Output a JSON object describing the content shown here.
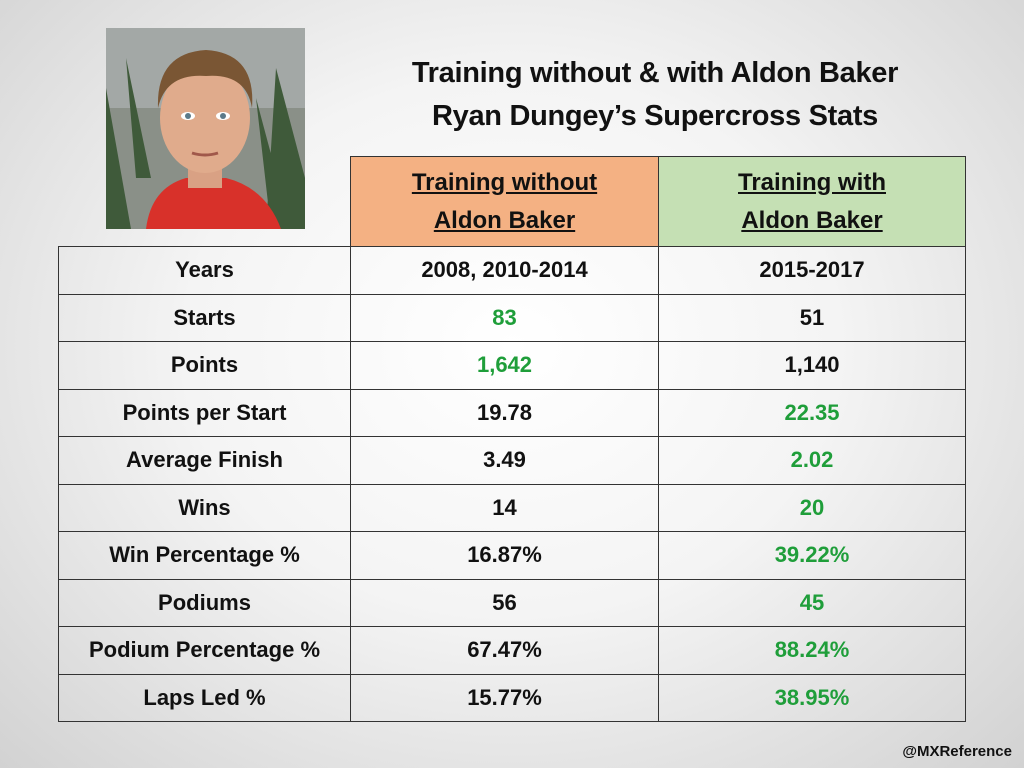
{
  "header": {
    "title_lines": [
      "Training without & with Aldon Baker",
      "Ryan Dungey’s Supercross Stats"
    ]
  },
  "table": {
    "highlight_color": "#1f9e3a",
    "columns": [
      {
        "lines": [
          "Training without",
          "Aldon Baker"
        ],
        "color": "#f4b183"
      },
      {
        "lines": [
          "Training with",
          "Aldon Baker"
        ],
        "color": "#c5e0b4"
      }
    ],
    "rows": [
      {
        "cells": [
          "Years",
          "2008, 2010-2014",
          "2015-2017"
        ]
      },
      {
        "cells": [
          "Starts",
          "83",
          "51"
        ],
        "highlight": 1
      },
      {
        "cells": [
          "Points",
          "1,642",
          "1,140"
        ],
        "highlight": 1
      },
      {
        "cells": [
          "Points per Start",
          "19.78",
          "22.35"
        ],
        "highlight": 2
      },
      {
        "cells": [
          "Average Finish",
          "3.49",
          "2.02"
        ],
        "highlight": 2
      },
      {
        "cells": [
          "Wins",
          "14",
          "20"
        ],
        "highlight": 2
      },
      {
        "cells": [
          "Win Percentage %",
          "16.87%",
          "39.22%"
        ],
        "highlight": 2
      },
      {
        "cells": [
          "Podiums",
          "56",
          "45"
        ],
        "highlight": 2
      },
      {
        "cells": [
          "Podium Percentage %",
          "67.47%",
          "88.24%"
        ],
        "highlight": 2
      },
      {
        "cells": [
          "Laps Led %",
          "15.77%",
          "38.95%"
        ],
        "highlight": 2
      }
    ]
  },
  "footer": {
    "credit": "@MXReference"
  }
}
